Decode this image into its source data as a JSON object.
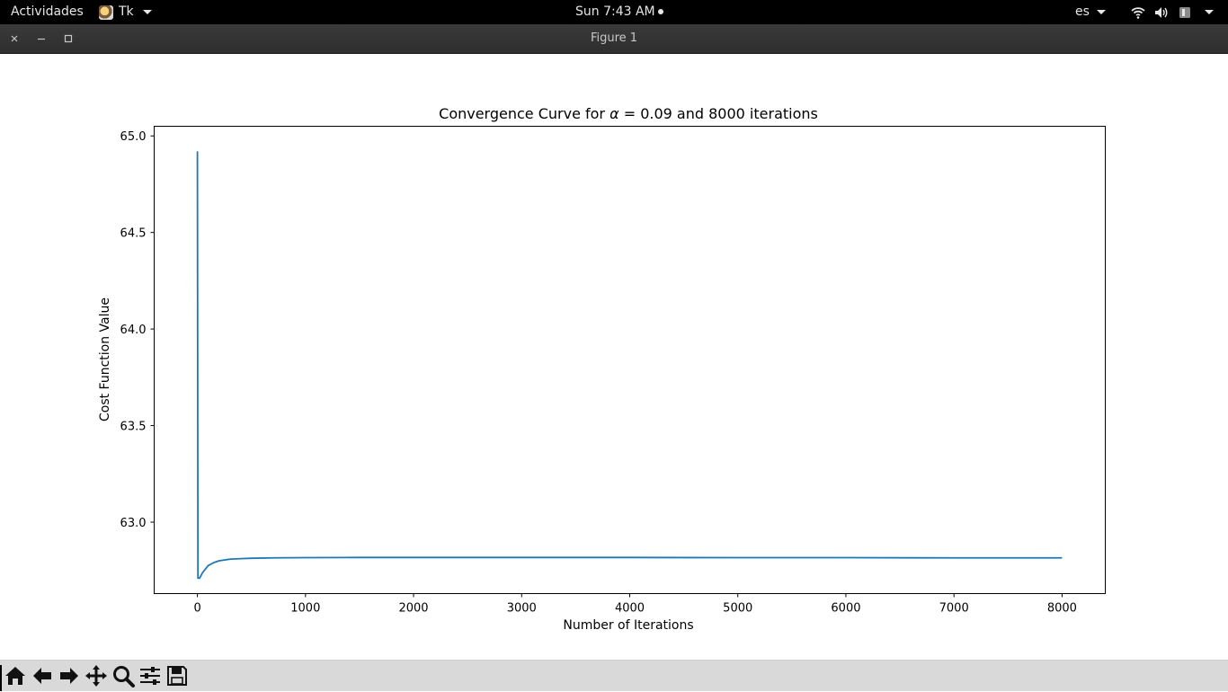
{
  "topbar": {
    "activities": "Actividades",
    "app_name": "Tk",
    "clock": "Sun  7:43 AM",
    "language": "es",
    "tray_icons": [
      "wifi-icon",
      "volume-icon",
      "battery-icon",
      "chevron-down-icon"
    ]
  },
  "window": {
    "title": "Figure 1",
    "controls": [
      "close",
      "minimize",
      "maximize"
    ]
  },
  "chart_data": {
    "type": "line",
    "title_prefix": "Convergence Curve for ",
    "title_symbol": "α",
    "title_suffix": " = 0.09 and 8000 iterations",
    "xlabel": "Number of Iterations",
    "ylabel": "Cost Function Value",
    "xlim": [
      -400,
      8400
    ],
    "ylim": [
      62.63,
      65.05
    ],
    "xticks": [
      0,
      1000,
      2000,
      3000,
      4000,
      5000,
      6000,
      7000,
      8000
    ],
    "yticks": [
      63.0,
      63.5,
      64.0,
      64.5,
      65.0
    ],
    "ytick_labels": [
      "63.0",
      "63.5",
      "64.0",
      "64.5",
      "65.0"
    ],
    "grid": false,
    "line_color": "#1f77b4",
    "series": [
      {
        "x": [
          0,
          5,
          20,
          50,
          100,
          150,
          200,
          300,
          400,
          500,
          700,
          1000,
          1500,
          2000,
          3000,
          4000,
          5000,
          6000,
          7000,
          8000
        ],
        "y": [
          64.92,
          62.71,
          62.71,
          62.74,
          62.775,
          62.79,
          62.8,
          62.808,
          62.811,
          62.813,
          62.815,
          62.816,
          62.817,
          62.817,
          62.817,
          62.817,
          62.816,
          62.816,
          62.815,
          62.815
        ]
      }
    ]
  },
  "toolbar": {
    "tools": [
      {
        "name": "home-button",
        "icon": "home-icon"
      },
      {
        "name": "back-button",
        "icon": "arrow-left-icon"
      },
      {
        "name": "forward-button",
        "icon": "arrow-right-icon"
      },
      {
        "name": "pan-button",
        "icon": "move-icon"
      },
      {
        "name": "zoom-button",
        "icon": "magnifier-icon"
      },
      {
        "name": "configure-subplots-button",
        "icon": "sliders-icon"
      },
      {
        "name": "save-button",
        "icon": "floppy-icon"
      }
    ]
  }
}
